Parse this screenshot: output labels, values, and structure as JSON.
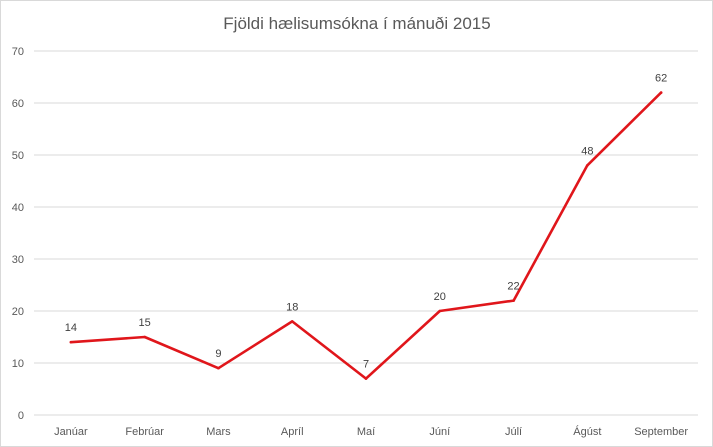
{
  "chart_data": {
    "type": "line",
    "title": "Fjöldi hælisumsókna í mánuði 2015",
    "xlabel": "",
    "ylabel": "",
    "categories": [
      "Janúar",
      "Febrúar",
      "Mars",
      "Apríl",
      "Maí",
      "Júní",
      "Júlí",
      "Ágúst",
      "September"
    ],
    "series": [
      {
        "values": [
          14,
          15,
          9,
          18,
          7,
          20,
          22,
          48,
          62
        ],
        "color": "#e0161b"
      }
    ],
    "ylim": [
      0,
      70
    ],
    "yticks": [
      0,
      10,
      20,
      30,
      40,
      50,
      60,
      70
    ],
    "grid": true,
    "legend": "none",
    "data_labels": true
  }
}
